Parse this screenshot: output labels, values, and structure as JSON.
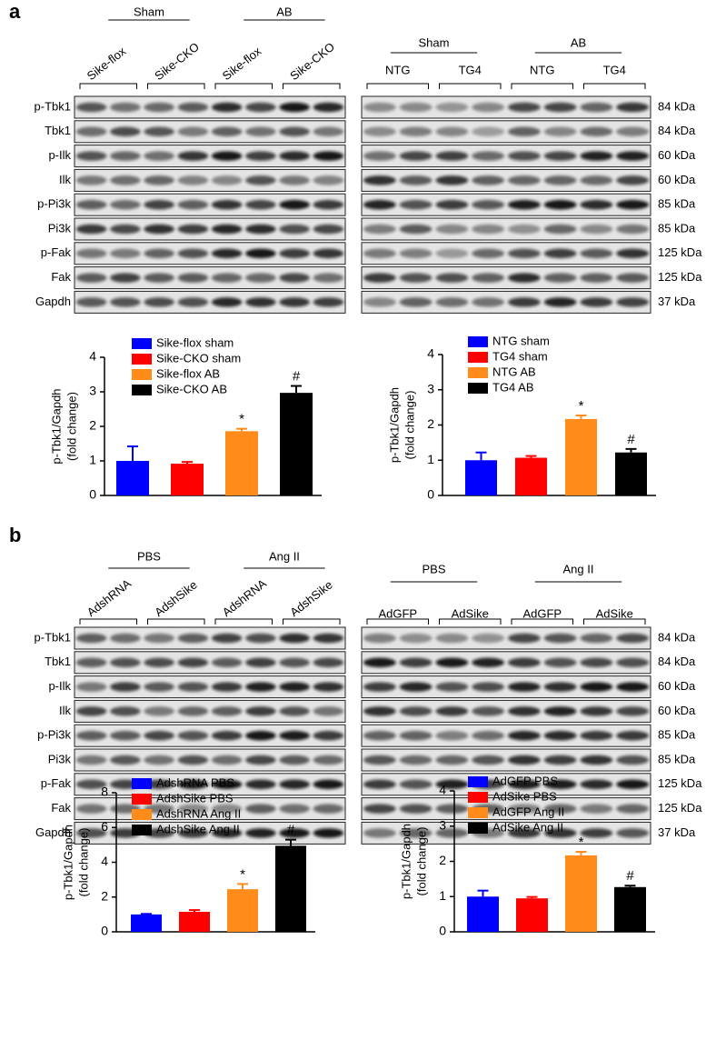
{
  "panels": [
    {
      "label": "a",
      "left": {
        "groups": [
          "Sham",
          "AB"
        ],
        "lanes": [
          "Sike-flox",
          "Sike-CKO",
          "Sike-flox",
          "Sike-CKO"
        ]
      },
      "right": {
        "groups": [
          "Sham",
          "AB"
        ],
        "lanes": [
          "NTG",
          "TG4",
          "NTG",
          "TG4"
        ]
      },
      "rows": [
        "p-Tbk1",
        "Tbk1",
        "p-Ilk",
        "Ilk",
        "p-Pi3k",
        "Pi3k",
        "p-Fak",
        "Fak",
        "Gapdh"
      ],
      "sizes": [
        "84 kDa",
        "84 kDa",
        "60 kDa",
        "60 kDa",
        "85 kDa",
        "85 kDa",
        "125 kDa",
        "125 kDa",
        "37 kDa"
      ]
    },
    {
      "label": "b",
      "left": {
        "groups": [
          "PBS",
          "Ang II"
        ],
        "lanes": [
          "AdshRNA",
          "AdshSike",
          "AdshRNA",
          "AdshSike"
        ]
      },
      "right": {
        "groups": [
          "PBS",
          "Ang II"
        ],
        "lanes": [
          "AdGFP",
          "AdSike",
          "AdGFP",
          "AdSike"
        ]
      },
      "rows": [
        "p-Tbk1",
        "Tbk1",
        "p-Ilk",
        "Ilk",
        "p-Pi3k",
        "Pi3k",
        "p-Fak",
        "Fak",
        "Gapdh"
      ],
      "sizes": [
        "84 kDa",
        "84 kDa",
        "60 kDa",
        "60 kDa",
        "85 kDa",
        "85 kDa",
        "125 kDa",
        "125 kDa",
        "37 kDa"
      ]
    }
  ],
  "chart_data": [
    {
      "type": "bar",
      "ylabel": [
        "p-Tbk1/Gapdh",
        "(fold change)"
      ],
      "categories": [
        "Sike-flox sham",
        "Sike-CKO sham",
        "Sike-flox AB",
        "Sike-CKO AB"
      ],
      "values": [
        1.0,
        0.92,
        1.86,
        2.97
      ],
      "errors": [
        0.42,
        0.05,
        0.07,
        0.2
      ],
      "colors": [
        "#0000ff",
        "#ff0000",
        "#ff8c1a",
        "#000000"
      ],
      "annotations": [
        null,
        null,
        "*",
        "#"
      ],
      "ylim": [
        0,
        4
      ],
      "yticks": [
        0,
        1,
        2,
        3,
        4
      ]
    },
    {
      "type": "bar",
      "ylabel": [
        "p-Tbk1/Gapdh",
        "(fold change)"
      ],
      "categories": [
        "NTG sham",
        "TG4 sham",
        "NTG AB",
        "TG4 AB"
      ],
      "values": [
        1.0,
        1.07,
        2.17,
        1.22
      ],
      "errors": [
        0.22,
        0.05,
        0.1,
        0.1
      ],
      "colors": [
        "#0000ff",
        "#ff0000",
        "#ff8c1a",
        "#000000"
      ],
      "annotations": [
        null,
        null,
        "*",
        "#"
      ],
      "ylim": [
        0,
        4
      ],
      "yticks": [
        0,
        1,
        2,
        3,
        4
      ]
    },
    {
      "type": "bar",
      "ylabel": [
        "p-Tbk1/Gapdh",
        "(fold change)"
      ],
      "categories": [
        "AdshRNA PBS",
        "AdshSike PBS",
        "AdshRNA Ang II",
        "AdshSike Ang II"
      ],
      "values": [
        1.0,
        1.15,
        2.45,
        4.95
      ],
      "errors": [
        0.03,
        0.1,
        0.3,
        0.35
      ],
      "colors": [
        "#0000ff",
        "#ff0000",
        "#ff8c1a",
        "#000000"
      ],
      "annotations": [
        null,
        null,
        "*",
        "#"
      ],
      "ylim": [
        0,
        8
      ],
      "yticks": [
        0,
        2,
        4,
        6,
        8
      ]
    },
    {
      "type": "bar",
      "ylabel": [
        "p-Tbk1/Gapdh",
        "(fold change)"
      ],
      "categories": [
        "AdGFP PBS",
        "AdSike PBS",
        "AdGFP Ang II",
        "AdSike Ang II"
      ],
      "values": [
        1.0,
        0.95,
        2.17,
        1.27
      ],
      "errors": [
        0.17,
        0.04,
        0.1,
        0.04
      ],
      "colors": [
        "#0000ff",
        "#ff0000",
        "#ff8c1a",
        "#000000"
      ],
      "annotations": [
        null,
        null,
        "*",
        "#"
      ],
      "ylim": [
        0,
        4
      ],
      "yticks": [
        0,
        1,
        2,
        3,
        4
      ]
    }
  ]
}
